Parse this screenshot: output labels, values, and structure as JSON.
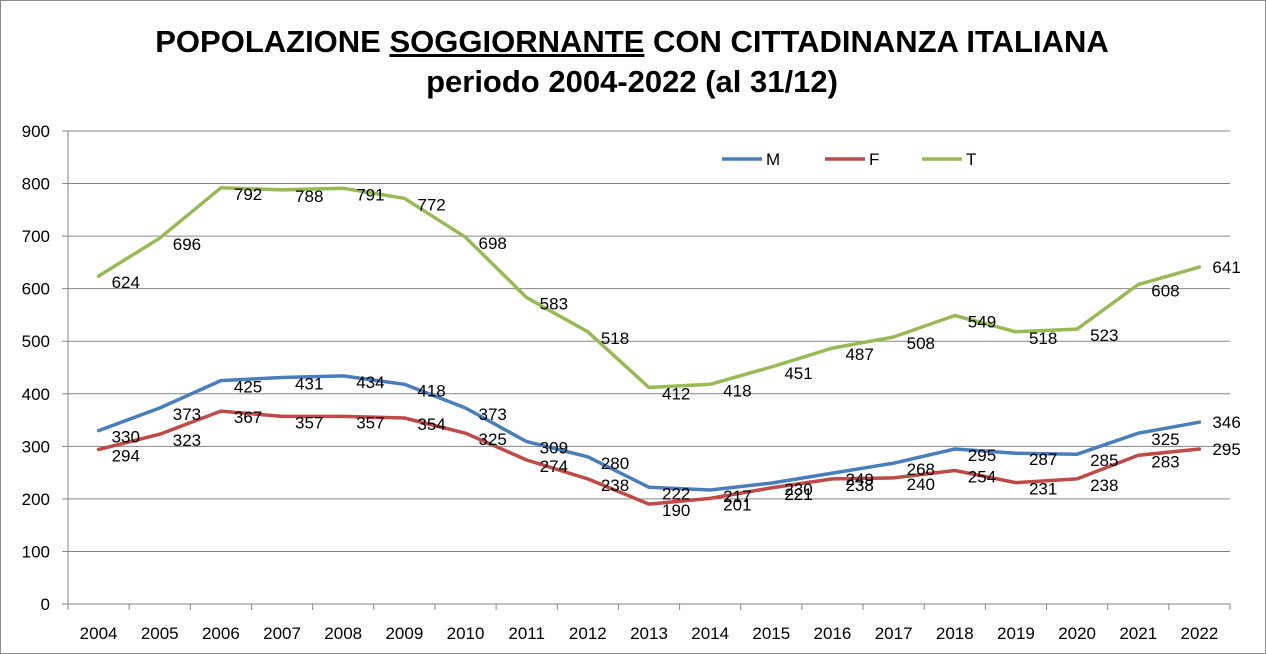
{
  "chart_data": {
    "type": "line",
    "title_line1_before": "POPOLAZIONE ",
    "title_line1_underlined": "SOGGIORNANTE",
    "title_line1_after": " CON CITTADINANZA ITALIANA",
    "title_line2": "periodo 2004-2022 (al 31/12)",
    "xlabel": "",
    "ylabel": "",
    "ylim": [
      0,
      900
    ],
    "yticks": [
      0,
      100,
      200,
      300,
      400,
      500,
      600,
      700,
      800,
      900
    ],
    "grid": true,
    "legend_position": "top-right",
    "categories": [
      "2004",
      "2005",
      "2006",
      "2007",
      "2008",
      "2009",
      "2010",
      "2011",
      "2012",
      "2013",
      "2014",
      "2015",
      "2016",
      "2017",
      "2018",
      "2019",
      "2020",
      "2021",
      "2022"
    ],
    "series": [
      {
        "name": "M",
        "color": "#4a7ebb",
        "values": [
          330,
          373,
          425,
          431,
          434,
          418,
          373,
          309,
          280,
          222,
          217,
          230,
          249,
          268,
          295,
          287,
          285,
          325,
          346
        ]
      },
      {
        "name": "F",
        "color": "#be4b48",
        "values": [
          294,
          323,
          367,
          357,
          357,
          354,
          325,
          274,
          238,
          190,
          201,
          221,
          238,
          240,
          254,
          231,
          238,
          283,
          295
        ]
      },
      {
        "name": "T",
        "color": "#98b954",
        "values": [
          624,
          696,
          792,
          788,
          791,
          772,
          698,
          583,
          518,
          412,
          418,
          451,
          487,
          508,
          549,
          518,
          523,
          608,
          641
        ]
      }
    ]
  }
}
